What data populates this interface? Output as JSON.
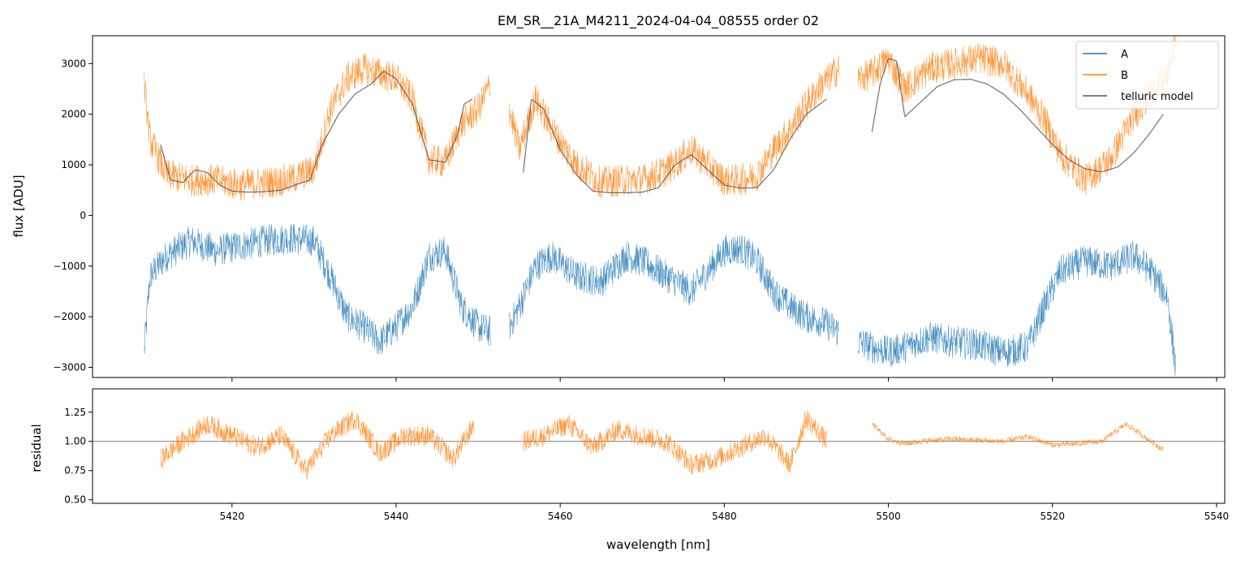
{
  "chart_data": [
    {
      "type": "line",
      "title": "EM_SR__21A_M4211_2024-04-04_08555  order 02",
      "xlabel": "",
      "ylabel": "flux [ADU]",
      "xlim": [
        5403,
        5541
      ],
      "ylim": [
        -3200,
        3550
      ],
      "x_ticks": [
        5420,
        5440,
        5460,
        5480,
        5500,
        5520,
        5540
      ],
      "y_ticks": [
        -3000,
        -2000,
        -1000,
        0,
        1000,
        2000,
        3000
      ],
      "y_tick_labels": [
        "−3000",
        "−2000",
        "−1000",
        "0",
        "1000",
        "2000",
        "3000"
      ],
      "legend_position": "top-right",
      "series": [
        {
          "name": "A",
          "color": "#1f77b4",
          "segments": [
            {
              "x": [
                5409.3,
                5410,
                5412,
                5415,
                5418,
                5421,
                5424,
                5427,
                5430,
                5432,
                5434,
                5436,
                5438,
                5440,
                5442,
                5444,
                5446,
                5448,
                5450,
                5451.5
              ],
              "y": [
                -2700,
                -1200,
                -800,
                -500,
                -700,
                -600,
                -500,
                -450,
                -500,
                -1200,
                -2000,
                -2200,
                -2500,
                -2200,
                -1800,
                -800,
                -700,
                -1800,
                -2200,
                -2300
              ]
            },
            {
              "x": [
                5453.8,
                5455,
                5457,
                5459,
                5462,
                5465,
                5468,
                5470,
                5473,
                5476,
                5478,
                5480,
                5482,
                5484,
                5486,
                5488,
                5490,
                5492,
                5494
              ],
              "y": [
                -2200,
                -1800,
                -1000,
                -800,
                -1200,
                -1300,
                -800,
                -900,
                -1200,
                -1500,
                -1100,
                -700,
                -650,
                -900,
                -1500,
                -1800,
                -2000,
                -2100,
                -2300
              ]
            },
            {
              "x": [
                5496.3,
                5498,
                5500,
                5502,
                5505,
                5508,
                5511,
                5514,
                5517,
                5519,
                5521,
                5524,
                5527,
                5530,
                5532,
                5534,
                5535
              ],
              "y": [
                -2500,
                -2600,
                -2700,
                -2600,
                -2400,
                -2500,
                -2550,
                -2700,
                -2600,
                -1800,
                -1100,
                -900,
                -1000,
                -800,
                -1100,
                -1600,
                -3000
              ]
            }
          ]
        },
        {
          "name": "B",
          "color": "#ff7f0e",
          "segments": [
            {
              "x": [
                5409.3,
                5410,
                5412,
                5415,
                5418,
                5421,
                5424,
                5427,
                5430,
                5432,
                5434,
                5436,
                5438,
                5440,
                5442,
                5444,
                5446,
                5448,
                5450,
                5451.5
              ],
              "y": [
                2600,
                1500,
                800,
                700,
                700,
                600,
                650,
                700,
                900,
                2100,
                2700,
                2900,
                2800,
                2700,
                2300,
                1100,
                1050,
                1800,
                2100,
                2600
              ]
            },
            {
              "x": [
                5453.8,
                5455,
                5457,
                5459,
                5462,
                5465,
                5468,
                5470,
                5473,
                5476,
                5478,
                5480,
                5482,
                5484,
                5486,
                5488,
                5490,
                5492,
                5494
              ],
              "y": [
                2100,
                1300,
                2300,
                1700,
                1000,
                650,
                700,
                700,
                900,
                1300,
                1000,
                700,
                700,
                800,
                1300,
                1700,
                2200,
                2600,
                2900
              ]
            },
            {
              "x": [
                5496.3,
                5498,
                5500,
                5502,
                5505,
                5508,
                5511,
                5514,
                5517,
                5519,
                5521,
                5524,
                5527,
                5530,
                5532,
                5534,
                5535
              ],
              "y": [
                2700,
                2800,
                3100,
                2500,
                2900,
                3000,
                3100,
                3000,
                2400,
                1900,
                1200,
                700,
                1100,
                2000,
                2400,
                2700,
                3500
              ]
            }
          ]
        },
        {
          "name": "telluric model",
          "color": "#555555",
          "segments": [
            {
              "x": [
                5411.3,
                5412.5,
                5414,
                5415.5,
                5417,
                5418.5,
                5420,
                5422,
                5424,
                5426,
                5428,
                5429.5,
                5431,
                5433,
                5435,
                5437,
                5438.5,
                5440,
                5442,
                5444,
                5446,
                5447.5,
                5448.3,
                5449.3
              ],
              "y": [
                1400,
                700,
                650,
                900,
                850,
                600,
                480,
                460,
                470,
                500,
                620,
                700,
                1400,
                2000,
                2400,
                2600,
                2850,
                2700,
                2200,
                1100,
                1050,
                1600,
                2200,
                2300
              ]
            },
            {
              "x": [
                5455.5,
                5456.5,
                5458,
                5460,
                5462,
                5464,
                5466,
                5468,
                5470,
                5472,
                5474,
                5476,
                5478,
                5480,
                5482,
                5484,
                5486,
                5488,
                5490,
                5492.5
              ],
              "y": [
                850,
                2300,
                2100,
                1300,
                800,
                480,
                450,
                450,
                460,
                550,
                1000,
                1200,
                900,
                600,
                540,
                550,
                900,
                1500,
                2000,
                2300
              ]
            },
            {
              "x": [
                5498,
                5499,
                5500,
                5501,
                5502,
                5504,
                5506,
                5508,
                5510,
                5512,
                5514,
                5516,
                5518,
                5520,
                5522,
                5524,
                5526,
                5528,
                5530,
                5532,
                5533.5
              ],
              "y": [
                1650,
                2600,
                3100,
                3050,
                1950,
                2250,
                2550,
                2680,
                2690,
                2600,
                2400,
                2100,
                1750,
                1400,
                1100,
                920,
                860,
                960,
                1250,
                1650,
                2000
              ]
            }
          ]
        }
      ]
    },
    {
      "type": "line",
      "title": "",
      "xlabel": "wavelength [nm]",
      "ylabel": "residual",
      "xlim": [
        5403,
        5541
      ],
      "ylim": [
        0.47,
        1.45
      ],
      "x_ticks": [
        5420,
        5440,
        5460,
        5480,
        5500,
        5520,
        5540
      ],
      "y_ticks": [
        0.5,
        0.75,
        1.0,
        1.25
      ],
      "y_tick_labels": [
        "0.50",
        "0.75",
        "1.00",
        "1.25"
      ],
      "reference_line": 1.0,
      "series": [
        {
          "name": "residual",
          "color": "#ff7f0e",
          "segments": [
            {
              "x": [
                5411.3,
                5414,
                5417,
                5420,
                5423,
                5426,
                5429,
                5432,
                5435,
                5438,
                5441,
                5444,
                5447,
                5449.5
              ],
              "y": [
                0.85,
                1.0,
                1.15,
                1.05,
                0.95,
                1.05,
                0.75,
                1.05,
                1.2,
                0.9,
                1.05,
                1.05,
                0.85,
                1.15
              ]
            },
            {
              "x": [
                5455.5,
                5458,
                5461,
                5464,
                5467,
                5470,
                5473,
                5476,
                5479,
                5482,
                5485,
                5488,
                5490,
                5492.5
              ],
              "y": [
                1.0,
                1.05,
                1.15,
                0.95,
                1.1,
                1.05,
                1.0,
                0.8,
                0.85,
                0.95,
                1.05,
                0.8,
                1.2,
                1.0
              ]
            },
            {
              "x": [
                5498,
                5500,
                5502,
                5505,
                5508,
                5511,
                5514,
                5517,
                5520,
                5523,
                5526,
                5529,
                5531,
                5533.5
              ],
              "y": [
                1.15,
                1.02,
                0.98,
                1.01,
                1.02,
                1.01,
                1.0,
                1.04,
                0.97,
                0.98,
                1.0,
                1.15,
                1.05,
                0.93
              ]
            }
          ]
        }
      ]
    }
  ]
}
